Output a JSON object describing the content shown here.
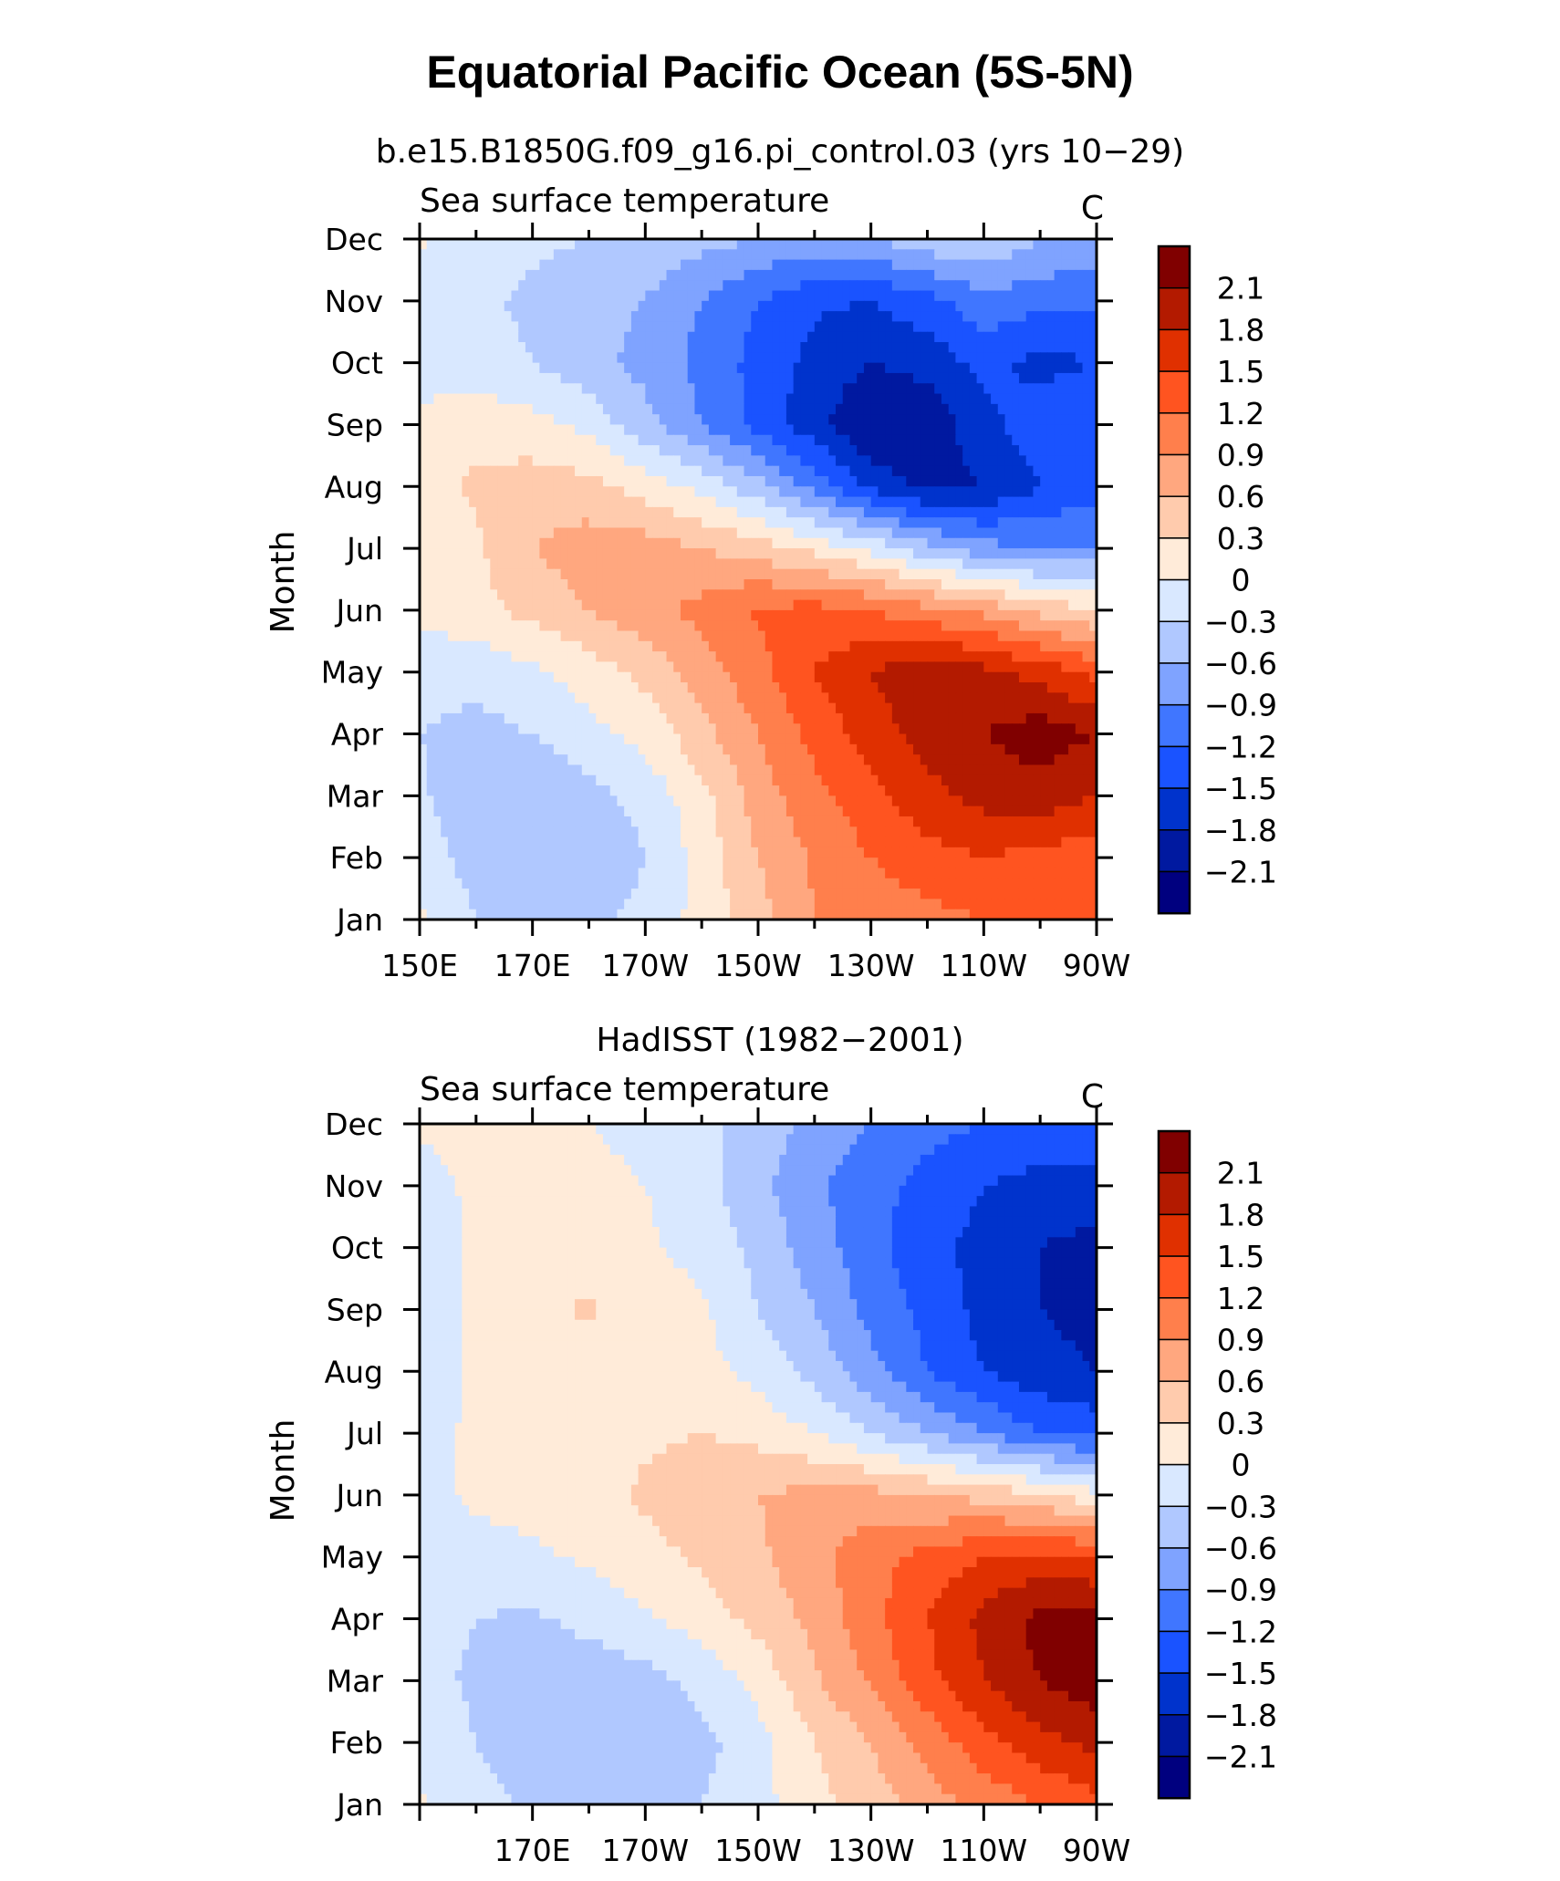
{
  "title": "Equatorial Pacific Ocean (5S-5N)",
  "chart_data": [
    {
      "type": "heatmap",
      "title": "b.e15.B1850G.f09_g16.pi_control.03 (yrs 10−29)",
      "left_string": "Sea surface temperature",
      "right_string": "C",
      "ylabel": "Month",
      "xlabel": "",
      "x_tick_labels": [
        "150E",
        "170E",
        "170W",
        "150W",
        "130W",
        "110W",
        "90W"
      ],
      "y_tick_labels": [
        "Jan",
        "Feb",
        "Mar",
        "Apr",
        "May",
        "Jun",
        "Jul",
        "Aug",
        "Sep",
        "Oct",
        "Nov",
        "Dec"
      ],
      "xlim": [
        150,
        270
      ],
      "ylim": [
        1,
        12
      ],
      "colorbar_labels": [
        "2.1",
        "1.8",
        "1.5",
        "1.2",
        "0.9",
        "0.6",
        "0.3",
        "0",
        "−0.3",
        "−0.6",
        "−0.9",
        "−1.2",
        "−1.5",
        "−1.8",
        "−2.1"
      ],
      "lon_points": [
        150,
        160,
        170,
        180,
        190,
        200,
        210,
        220,
        230,
        240,
        250,
        260,
        270
      ],
      "values": [
        [
          0.05,
          -0.3,
          -0.5,
          -0.4,
          -0.2,
          0.1,
          0.5,
          0.9,
          1.0,
          1.1,
          1.2,
          1.2,
          1.2
        ],
        [
          -0.1,
          -0.45,
          -0.6,
          -0.55,
          -0.3,
          0.1,
          0.6,
          0.95,
          1.2,
          1.4,
          1.5,
          1.4,
          1.3
        ],
        [
          -0.25,
          -0.55,
          -0.55,
          -0.4,
          -0.2,
          0.2,
          0.75,
          1.1,
          1.4,
          1.7,
          1.9,
          2.0,
          1.8
        ],
        [
          -0.3,
          -0.4,
          -0.3,
          -0.1,
          0.1,
          0.5,
          0.9,
          1.3,
          1.65,
          1.95,
          2.1,
          2.25,
          2.1
        ],
        [
          -0.15,
          -0.2,
          -0.05,
          0.15,
          0.4,
          0.75,
          1.1,
          1.5,
          1.8,
          2.0,
          1.9,
          1.7,
          1.4
        ],
        [
          0.05,
          0.2,
          0.4,
          0.6,
          0.8,
          1.0,
          1.25,
          1.3,
          1.2,
          1.0,
          0.8,
          0.5,
          0.3
        ],
        [
          0.1,
          0.25,
          0.6,
          0.75,
          0.75,
          0.6,
          0.45,
          0.2,
          -0.1,
          -0.5,
          -0.8,
          -0.9,
          -0.9
        ],
        [
          0.15,
          0.35,
          0.45,
          0.4,
          0.15,
          -0.1,
          -0.5,
          -1.0,
          -1.6,
          -1.9,
          -1.8,
          -1.5,
          -1.3
        ],
        [
          0.05,
          0.2,
          0.1,
          -0.1,
          -0.5,
          -0.9,
          -1.3,
          -1.7,
          -2.1,
          -2.0,
          -1.6,
          -1.3,
          -1.2
        ],
        [
          -0.1,
          -0.2,
          -0.3,
          -0.5,
          -0.7,
          -1.0,
          -1.3,
          -1.6,
          -1.8,
          -1.7,
          -1.4,
          -1.6,
          -1.5
        ],
        [
          -0.15,
          -0.25,
          -0.35,
          -0.5,
          -0.6,
          -0.9,
          -1.2,
          -1.45,
          -1.5,
          -1.3,
          -1.0,
          -1.1,
          -1.1
        ],
        [
          0.05,
          -0.2,
          -0.25,
          -0.3,
          -0.4,
          -0.5,
          -0.6,
          -0.7,
          -0.6,
          -0.4,
          -0.3,
          -0.6,
          -0.7
        ]
      ]
    },
    {
      "type": "heatmap",
      "title": "HadISST (1982−2001)",
      "left_string": "Sea surface temperature",
      "right_string": "C",
      "ylabel": "Month",
      "xlabel": "",
      "x_tick_labels": [
        "170E",
        "170W",
        "150W",
        "130W",
        "110W",
        "90W"
      ],
      "y_tick_labels": [
        "Jan",
        "Feb",
        "Mar",
        "Apr",
        "May",
        "Jun",
        "Jul",
        "Aug",
        "Sep",
        "Oct",
        "Nov",
        "Dec"
      ],
      "xlim": [
        150,
        270
      ],
      "ylim": [
        1,
        12
      ],
      "colorbar_labels": [
        "2.1",
        "1.8",
        "1.5",
        "1.2",
        "0.9",
        "0.6",
        "0.3",
        "0",
        "−0.3",
        "−0.6",
        "−0.9",
        "−1.2",
        "−1.5",
        "−1.8",
        "−2.1"
      ],
      "lon_points": [
        150,
        160,
        170,
        180,
        190,
        200,
        210,
        220,
        230,
        240,
        250,
        260,
        270
      ],
      "values": [
        [
          0.05,
          -0.2,
          -0.35,
          -0.45,
          -0.4,
          -0.3,
          -0.1,
          0.2,
          0.45,
          0.75,
          1.0,
          1.2,
          1.4
        ],
        [
          -0.1,
          -0.3,
          -0.5,
          -0.55,
          -0.5,
          -0.4,
          -0.1,
          0.3,
          0.6,
          1.0,
          1.4,
          1.7,
          1.9
        ],
        [
          -0.2,
          -0.35,
          -0.5,
          -0.5,
          -0.4,
          -0.2,
          0.1,
          0.55,
          0.95,
          1.4,
          1.8,
          2.1,
          2.3
        ],
        [
          -0.2,
          -0.3,
          -0.35,
          -0.2,
          -0.05,
          0.15,
          0.4,
          0.7,
          1.1,
          1.5,
          1.9,
          2.2,
          2.2
        ],
        [
          -0.15,
          -0.1,
          -0.05,
          0.05,
          0.2,
          0.35,
          0.55,
          0.8,
          1.1,
          1.3,
          1.5,
          1.6,
          1.5
        ],
        [
          -0.1,
          0.05,
          0.1,
          0.2,
          0.35,
          0.5,
          0.6,
          0.7,
          0.7,
          0.6,
          0.5,
          0.35,
          0.1
        ],
        [
          -0.1,
          0.05,
          0.1,
          0.15,
          0.25,
          0.3,
          0.2,
          0.0,
          -0.3,
          -0.6,
          -0.9,
          -1.2,
          -1.3
        ],
        [
          -0.15,
          0.05,
          0.1,
          0.15,
          0.15,
          0.1,
          -0.1,
          -0.4,
          -0.8,
          -1.2,
          -1.5,
          -1.7,
          -1.8
        ],
        [
          -0.2,
          0.05,
          0.2,
          0.35,
          0.15,
          0.05,
          -0.3,
          -0.6,
          -1.0,
          -1.3,
          -1.6,
          -1.8,
          -1.9
        ],
        [
          -0.15,
          0.05,
          0.1,
          0.1,
          0.05,
          -0.1,
          -0.4,
          -0.75,
          -1.1,
          -1.4,
          -1.6,
          -1.8,
          -1.9
        ],
        [
          -0.1,
          0.05,
          0.05,
          0.05,
          0.0,
          -0.2,
          -0.5,
          -0.85,
          -1.1,
          -1.3,
          -1.5,
          -1.6,
          -1.6
        ],
        [
          0.05,
          0.05,
          0.05,
          0.0,
          -0.05,
          -0.2,
          -0.45,
          -0.7,
          -0.9,
          -1.1,
          -1.2,
          -1.3,
          -1.2
        ]
      ]
    }
  ],
  "colors": {
    "levels": [
      "#00007f",
      "#0019a0",
      "#0033cc",
      "#1a53ff",
      "#4076ff",
      "#7fa3ff",
      "#b0c8ff",
      "#d9e8ff",
      "#ffebd9",
      "#ffcbad",
      "#ffa77f",
      "#ff7f4c",
      "#ff5420",
      "#e03000",
      "#b31a00",
      "#800000"
    ],
    "axis": "#000000"
  }
}
